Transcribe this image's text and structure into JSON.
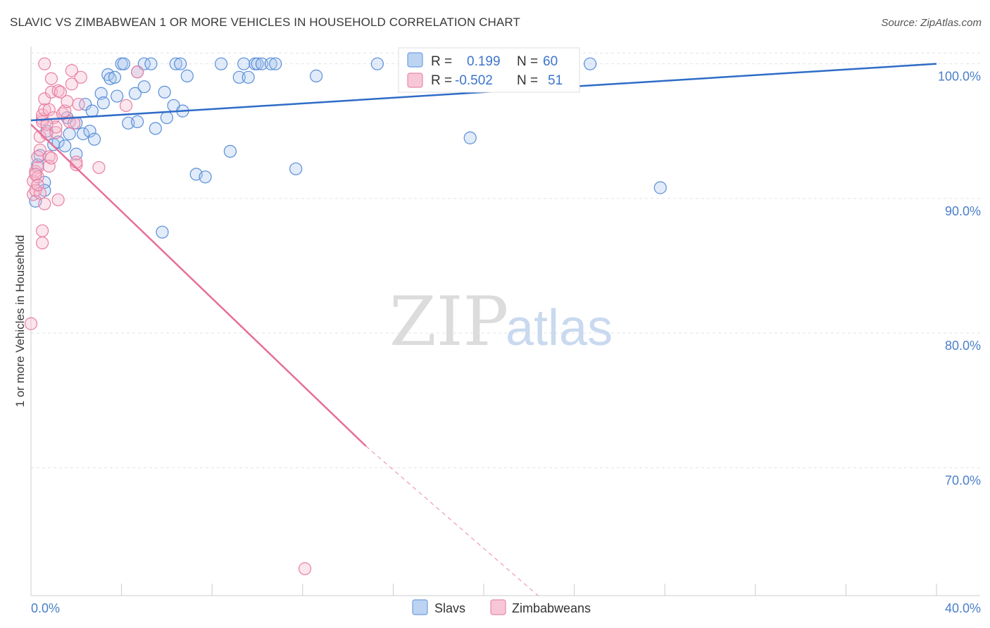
{
  "title": "SLAVIC VS ZIMBABWEAN 1 OR MORE VEHICLES IN HOUSEHOLD CORRELATION CHART",
  "source": "Source: ZipAtlas.com",
  "watermark": {
    "zip": "ZIP",
    "atlas": "atlas"
  },
  "chart_data": {
    "type": "scatter",
    "title": "SLAVIC VS ZIMBABWEAN 1 OR MORE VEHICLES IN HOUSEHOLD CORRELATION CHART",
    "xlabel": "",
    "ylabel": "1 or more Vehicles in Household",
    "xlim": [
      0,
      40
    ],
    "ylim": [
      60.5,
      101.5
    ],
    "x_tick_labels": [
      "0.0%",
      "40.0%"
    ],
    "y_ticks": [
      70,
      80,
      90,
      100
    ],
    "y_tick_labels": [
      "70.0%",
      "80.0%",
      "90.0%",
      "100.0%"
    ],
    "grid": true,
    "legend_position": "top-center",
    "colors": {
      "slavs": "#5a8fd8",
      "zimbabweans": "#e87fa3",
      "slavs_line": "#2f6cc8",
      "zim_line": "#e66f98"
    },
    "stats": [
      {
        "r_label": "R =",
        "r_value": "0.199",
        "n_label": "N =",
        "n_value": "60"
      },
      {
        "r_label": "R =",
        "r_value": "-0.502",
        "n_label": "N =",
        "n_value": "51"
      }
    ],
    "series": [
      {
        "name": "Slavs",
        "trend": {
          "x": [
            0,
            40
          ],
          "y": [
            95.8,
            100.0
          ],
          "dashed_from": null
        },
        "points": [
          [
            0.2,
            89.8
          ],
          [
            0.3,
            92.5
          ],
          [
            0.4,
            93.2
          ],
          [
            0.6,
            91.2
          ],
          [
            0.7,
            95.0
          ],
          [
            1.0,
            94.0
          ],
          [
            1.2,
            94.2
          ],
          [
            1.5,
            93.9
          ],
          [
            1.6,
            96.0
          ],
          [
            1.7,
            94.8
          ],
          [
            2.0,
            95.6
          ],
          [
            2.0,
            93.3
          ],
          [
            2.3,
            94.8
          ],
          [
            2.4,
            97.0
          ],
          [
            2.6,
            95.0
          ],
          [
            2.7,
            96.5
          ],
          [
            2.8,
            94.4
          ],
          [
            3.1,
            97.8
          ],
          [
            3.2,
            97.1
          ],
          [
            3.4,
            99.2
          ],
          [
            3.5,
            98.9
          ],
          [
            3.7,
            99.0
          ],
          [
            3.8,
            97.6
          ],
          [
            4.0,
            100.0
          ],
          [
            4.1,
            100.0
          ],
          [
            4.3,
            95.6
          ],
          [
            4.6,
            97.8
          ],
          [
            4.7,
            99.4
          ],
          [
            4.7,
            95.7
          ],
          [
            5.0,
            100.0
          ],
          [
            5.0,
            98.3
          ],
          [
            5.3,
            100.0
          ],
          [
            5.5,
            95.2
          ],
          [
            5.9,
            97.9
          ],
          [
            6.0,
            96.0
          ],
          [
            6.3,
            96.9
          ],
          [
            6.4,
            100.0
          ],
          [
            6.6,
            100.0
          ],
          [
            6.7,
            96.5
          ],
          [
            6.9,
            99.1
          ],
          [
            7.3,
            91.8
          ],
          [
            7.7,
            91.6
          ],
          [
            8.4,
            100.0
          ],
          [
            8.8,
            93.5
          ],
          [
            9.2,
            99.0
          ],
          [
            9.4,
            100.0
          ],
          [
            9.6,
            99.0
          ],
          [
            9.9,
            100.0
          ],
          [
            10.0,
            100.0
          ],
          [
            10.2,
            100.0
          ],
          [
            10.6,
            100.0
          ],
          [
            10.8,
            100.0
          ],
          [
            11.7,
            92.2
          ],
          [
            12.6,
            99.1
          ],
          [
            15.3,
            100.0
          ],
          [
            19.4,
            94.5
          ],
          [
            24.7,
            100.0
          ],
          [
            27.8,
            90.8
          ],
          [
            0.6,
            90.6
          ],
          [
            5.8,
            87.5
          ]
        ]
      },
      {
        "name": "Zimbabweans",
        "trend": {
          "x": [
            0,
            14.8
          ],
          "y": [
            95.5,
            71.6
          ],
          "dashed_to": {
            "x": 22.4,
            "y": 60.5
          }
        },
        "points": [
          [
            0.0,
            80.7
          ],
          [
            0.1,
            90.3
          ],
          [
            0.1,
            91.3
          ],
          [
            0.2,
            92.0
          ],
          [
            0.2,
            90.6
          ],
          [
            0.3,
            92.3
          ],
          [
            0.3,
            91.6
          ],
          [
            0.3,
            93.1
          ],
          [
            0.4,
            93.6
          ],
          [
            0.4,
            94.6
          ],
          [
            0.5,
            95.9
          ],
          [
            0.5,
            95.7
          ],
          [
            0.5,
            96.2
          ],
          [
            0.5,
            86.7
          ],
          [
            0.5,
            87.6
          ],
          [
            0.6,
            96.6
          ],
          [
            0.6,
            97.4
          ],
          [
            0.6,
            100.0
          ],
          [
            0.7,
            94.8
          ],
          [
            0.8,
            93.1
          ],
          [
            0.8,
            92.4
          ],
          [
            0.8,
            96.6
          ],
          [
            0.9,
            97.9
          ],
          [
            0.9,
            98.9
          ],
          [
            1.0,
            96.0
          ],
          [
            1.1,
            94.9
          ],
          [
            1.1,
            95.3
          ],
          [
            1.2,
            98.0
          ],
          [
            1.2,
            89.9
          ],
          [
            1.4,
            96.3
          ],
          [
            1.5,
            96.5
          ],
          [
            1.6,
            97.2
          ],
          [
            1.7,
            95.7
          ],
          [
            1.8,
            98.5
          ],
          [
            1.8,
            99.5
          ],
          [
            1.9,
            95.6
          ],
          [
            2.0,
            92.5
          ],
          [
            2.0,
            92.7
          ],
          [
            2.1,
            97.0
          ],
          [
            2.2,
            99.0
          ],
          [
            3.0,
            92.3
          ],
          [
            4.2,
            96.9
          ],
          [
            4.7,
            99.4
          ],
          [
            12.1,
            62.5
          ],
          [
            0.4,
            90.4
          ],
          [
            0.6,
            89.6
          ],
          [
            0.2,
            91.8
          ],
          [
            0.3,
            91.0
          ],
          [
            0.9,
            93.0
          ],
          [
            1.3,
            97.9
          ],
          [
            0.7,
            95.5
          ]
        ]
      }
    ]
  },
  "legend_bottom": [
    {
      "label": "Slavs"
    },
    {
      "label": "Zimbabweans"
    }
  ]
}
